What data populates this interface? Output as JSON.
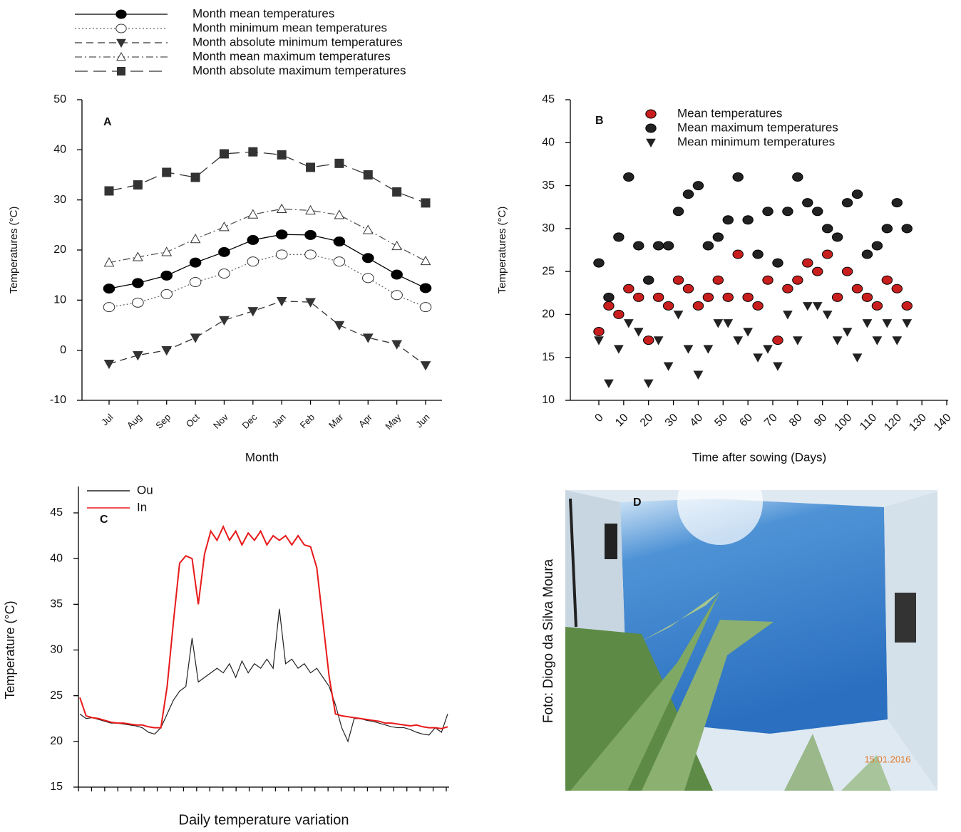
{
  "chart_data": [
    {
      "type": "line",
      "annotation": "A",
      "x_label": "Month",
      "y_label": "Temperatures (°C)",
      "categories": [
        "Jul",
        "Aug",
        "Sep",
        "Oct",
        "Nov",
        "Dec",
        "Jan",
        "Feb",
        "Mar",
        "Apr",
        "May",
        "Jun"
      ],
      "ylim": [
        -10,
        50
      ],
      "yticks": [
        -10,
        0,
        10,
        20,
        30,
        40,
        50
      ],
      "series": [
        {
          "name": "Month mean temperatures",
          "color": "#000000",
          "dash": "solid",
          "marker": "circle-filled",
          "values": [
            12.3,
            13.4,
            14.9,
            17.5,
            19.6,
            22,
            23.1,
            23,
            21.7,
            18.4,
            15.1,
            12.4
          ]
        },
        {
          "name": "Month minimum mean temperatures",
          "color": "#666666",
          "dash": "dotted",
          "marker": "circle-open",
          "values": [
            8.6,
            9.5,
            11.2,
            13.6,
            15.3,
            17.7,
            19.1,
            19.1,
            17.7,
            14.4,
            11,
            8.6
          ]
        },
        {
          "name": "Month absolute minimum temperatures",
          "color": "#333333",
          "dash": "dashed",
          "marker": "triangle-down-filled",
          "values": [
            -2.7,
            -1,
            0,
            2.5,
            6,
            7.8,
            9.8,
            9.6,
            5,
            2.5,
            1.2,
            -3
          ]
        },
        {
          "name": "Month mean maximum temperatures",
          "color": "#555555",
          "dash": "dash-dot",
          "marker": "triangle-up-open",
          "values": [
            17.5,
            18.6,
            19.6,
            22.2,
            24.6,
            27.1,
            28.2,
            27.9,
            27,
            24,
            20.8,
            17.8
          ]
        },
        {
          "name": "Month absolute maximum temperatures",
          "color": "#333333",
          "dash": "long-dash",
          "marker": "square-filled",
          "values": [
            31.8,
            33,
            35.5,
            34.5,
            39.2,
            39.6,
            39,
            36.5,
            37.3,
            35,
            31.6,
            29.4
          ]
        }
      ]
    },
    {
      "type": "scatter",
      "annotation": "B",
      "x_label": "Time after sowing (Days)",
      "y_label": "Temperatures (°C)",
      "x": [
        0,
        4,
        8,
        12,
        16,
        20,
        24,
        28,
        32,
        36,
        40,
        44,
        48,
        52,
        56,
        60,
        64,
        68,
        72,
        76,
        80,
        84,
        88,
        92,
        96,
        100,
        104,
        108,
        112,
        116,
        120,
        124
      ],
      "xlim": [
        0,
        140
      ],
      "xticks": [
        0,
        10,
        20,
        30,
        40,
        50,
        60,
        70,
        80,
        90,
        100,
        110,
        120,
        130,
        140
      ],
      "ylim": [
        10,
        45
      ],
      "yticks": [
        10,
        15,
        20,
        25,
        30,
        35,
        40,
        45
      ],
      "series": [
        {
          "name": "Mean temperatures",
          "color": "#c81e1e",
          "marker": "circle",
          "values": [
            18,
            21,
            20,
            23,
            22,
            17,
            22,
            21,
            24,
            23,
            21,
            22,
            24,
            22,
            27,
            22,
            21,
            24,
            17,
            23,
            24,
            26,
            25,
            27,
            22,
            25,
            23,
            22,
            21,
            24,
            23,
            21
          ]
        },
        {
          "name": "Mean maximum temperatures",
          "color": "#222222",
          "marker": "circle",
          "values": [
            26,
            22,
            29,
            36,
            28,
            24,
            28,
            28,
            32,
            34,
            35,
            28,
            29,
            31,
            36,
            31,
            27,
            32,
            26,
            32,
            36,
            33,
            32,
            30,
            29,
            33,
            34,
            27,
            28,
            30,
            33,
            30
          ]
        },
        {
          "name": "Mean minimum temperatures",
          "color": "#222222",
          "marker": "triangle-down",
          "values": [
            17,
            12,
            16,
            19,
            18,
            12,
            17,
            14,
            20,
            16,
            13,
            16,
            19,
            19,
            17,
            18,
            15,
            16,
            14,
            20,
            17,
            21,
            21,
            20,
            17,
            18,
            15,
            19,
            17,
            19,
            17,
            19
          ]
        }
      ]
    },
    {
      "type": "line",
      "annotation": "C",
      "x_label": "Daily temperature variation",
      "y_label": "Temperature (°C)",
      "ylim": [
        15,
        45
      ],
      "yticks": [
        15,
        20,
        25,
        30,
        35,
        40,
        45
      ],
      "series": [
        {
          "name": "Ou",
          "color": "#222222",
          "values": [
            23,
            22.5,
            22.6,
            22.4,
            22.2,
            22,
            22,
            21.9,
            21.8,
            21.7,
            21.5,
            21,
            20.8,
            21.5,
            23,
            24.5,
            25.5,
            26,
            31.3,
            26.5,
            27,
            27.5,
            28,
            27.5,
            28.5,
            27,
            28.8,
            27.5,
            28.5,
            28,
            29,
            28,
            34.5,
            28.5,
            29,
            28,
            28.5,
            27.5,
            28,
            27,
            26,
            24,
            21.5,
            20,
            22.5,
            22.5,
            22.3,
            22.2,
            22,
            21.8,
            21.6,
            21.5,
            21.5,
            21.3,
            21,
            20.8,
            20.7,
            21.5,
            21,
            23
          ]
        },
        {
          "name": "In",
          "color": "#e8191a",
          "values": [
            24.8,
            22.8,
            22.6,
            22.5,
            22.3,
            22.1,
            22,
            22,
            21.9,
            21.8,
            21.8,
            21.6,
            21.5,
            21.5,
            26,
            33,
            39.5,
            40.3,
            40,
            35,
            40.5,
            43,
            42,
            43.5,
            42,
            43,
            41.5,
            42.8,
            42,
            43,
            41.5,
            42.5,
            42,
            42.5,
            41.5,
            42.5,
            41.5,
            41.3,
            39,
            33,
            27,
            23,
            22.8,
            22.7,
            22.6,
            22.5,
            22.4,
            22.3,
            22.2,
            22,
            22,
            21.9,
            21.8,
            21.7,
            21.8,
            21.6,
            21.5,
            21.5,
            21.4,
            21.6
          ]
        }
      ]
    }
  ],
  "photo": {
    "label": "D",
    "credit": "Foto: Diogo da Silva Moura",
    "date": "15.01.2016"
  }
}
